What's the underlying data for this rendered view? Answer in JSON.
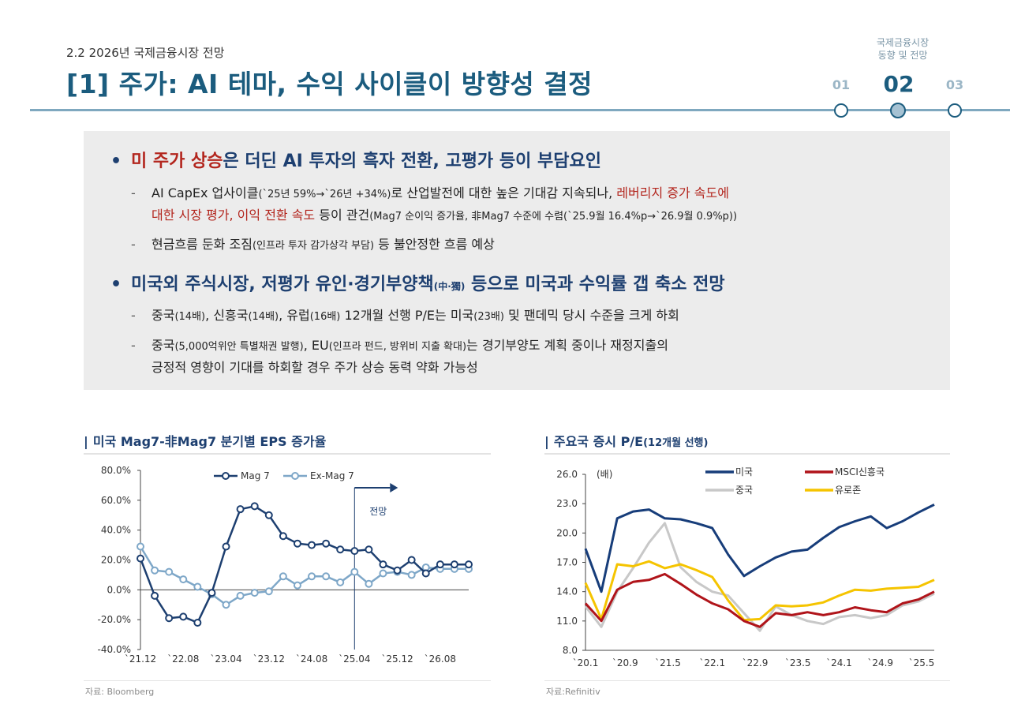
{
  "header": {
    "section": "2.2 2026년 국제금융시장 전망",
    "title": "[1] 주가: AI 테마, 수익 사이클이 방향성 결정",
    "nav_caption_1": "국제금융시장",
    "nav_caption_2": "동향 및 전망",
    "steps": [
      "01",
      "02",
      "03"
    ],
    "active_step": "02"
  },
  "summary": {
    "b1_red": "미 주가 상승",
    "b1_rest": "은 더딘 AI 투자의 흑자 전환, 고평가 등이 부담요인",
    "b1_s1_a": "AI CapEx 업사이클",
    "b1_s1_b": "(`25년 59%→`26년 +34%)",
    "b1_s1_c": "로 산업발전에 대한 높은 기대감 지속되나, ",
    "b1_s1_red": "레버리지 증가 속도에",
    "b1_s1_red2": "대한 시장 평가, 이익 전환 속도",
    "b1_s1_d": " 등이 관건",
    "b1_s1_e": "(Mag7 순이익 증가율, 非Mag7 수준에 수렴(`25.9월 16.4%p→`26.9월 0.9%p))",
    "b1_s2_a": "현금흐름 둔화 조짐",
    "b1_s2_b": "(인프라 투자 감가상각 부담)",
    "b1_s2_c": " 등 불안정한 흐름 예상",
    "b2_a": "미국외 주식시장, 저평가 유인·경기부양책",
    "b2_b": "(中·獨)",
    "b2_c": " 등으로 미국과 수익률 갭 축소 전망",
    "b2_s1": [
      "중국",
      "(14배)",
      ", 신흥국",
      "(14배)",
      ", 유럽",
      "(16배)",
      " 12개월 선행 P/E는 미국",
      "(23배)",
      " 및 팬데믹 당시 수준을 크게 하회"
    ],
    "b2_s2_a": "중국",
    "b2_s2_b": "(5,000억위안 특별채권 발행)",
    "b2_s2_c": ", EU",
    "b2_s2_d": "(인프라 펀드, 방위비 지출 확대)",
    "b2_s2_e": "는 경기부양도 계획 중이나 재정지출의",
    "b2_s2_f": "긍정적 영향이 기대를 하회할 경우 주가 상승 동력 약화 가능성"
  },
  "chart1": {
    "title": "미국 Mag7-非Mag7 분기별 EPS 증가율",
    "source": "자료: Bloomberg",
    "forecast_label": "전망",
    "colors": {
      "mag7": "#1d3f70",
      "ex": "#7ea7c8"
    }
  },
  "chart2": {
    "title": "주요국 증시 P/E",
    "title_small": "(12개월 선행)",
    "unit": "(배)",
    "source": "자료:Refinitiv",
    "colors": {
      "us": "#173d7a",
      "em": "#b0141a",
      "cn": "#c8c8c8",
      "eu": "#f5c400"
    }
  },
  "chart_data": [
    {
      "type": "line",
      "title": "미국 Mag7-非Mag7 분기별 EPS 증가율",
      "x": [
        "`21.12",
        "`22.03",
        "`22.06",
        "`22.08",
        "`22.12",
        "`23.02",
        "`23.04",
        "`23.06",
        "`23.08",
        "`23.12",
        "`24.02",
        "`24.05",
        "`24.08",
        "`24.11",
        "`25.02",
        "`25.04",
        "`25.07",
        "`25.10",
        "`25.12",
        "`26.03",
        "`26.06",
        "`26.08",
        "`26.10",
        "`26.12"
      ],
      "xticks": [
        "`21.12",
        "`22.08",
        "`23.04",
        "`23.12",
        "`24.08",
        "`25.04",
        "`25.12",
        "`26.08"
      ],
      "yticks": [
        "80.0%",
        "60.0%",
        "40.0%",
        "20.0%",
        "0.0%",
        "-20.0%",
        "-40.0%"
      ],
      "ylim": [
        -40,
        80
      ],
      "series": [
        {
          "name": "Mag 7",
          "values": [
            21,
            -4,
            -19,
            -18,
            -22,
            -2,
            29,
            54,
            56,
            50,
            36,
            31,
            30,
            31,
            27,
            26,
            27,
            17,
            13,
            20,
            11,
            17,
            17,
            17
          ]
        },
        {
          "name": "Ex-Mag 7",
          "values": [
            29,
            13,
            12,
            7,
            2,
            -3,
            -10,
            -4,
            -2,
            -1,
            9,
            3,
            9,
            9,
            5,
            12,
            4,
            11,
            12,
            10,
            15,
            14,
            14,
            14
          ]
        }
      ],
      "forecast_start": "`25.04",
      "legend": "top-center"
    },
    {
      "type": "line",
      "title": "주요국 증시 P/E(12개월 선행)",
      "xticks": [
        "`20.1",
        "`20.9",
        "`21.5",
        "`22.1",
        "`22.9",
        "`23.5",
        "`24.1",
        "`24.9",
        "`25.5"
      ],
      "yticks": [
        "26.0",
        "23.0",
        "20.0",
        "17.0",
        "14.0",
        "11.0",
        "8.0"
      ],
      "ylim": [
        8,
        26
      ],
      "x": [
        "`20.1",
        "`20.3",
        "`20.5",
        "`20.9",
        "`21.1",
        "`21.3",
        "`21.5",
        "`21.9",
        "`22.1",
        "`22.5",
        "`22.9",
        "`22.11",
        "`23.2",
        "`23.5",
        "`23.8",
        "`24.1",
        "`24.5",
        "`24.9",
        "`25.1",
        "`25.3",
        "`25.5",
        "`25.8",
        "`25.11"
      ],
      "series": [
        {
          "name": "미국",
          "values": [
            18.4,
            14.0,
            21.5,
            22.2,
            22.4,
            21.5,
            21.4,
            21.0,
            20.5,
            17.8,
            15.6,
            16.6,
            17.5,
            18.1,
            18.3,
            19.5,
            20.6,
            21.2,
            21.7,
            20.5,
            21.2,
            22.1,
            22.9
          ]
        },
        {
          "name": "MSCI신흥국",
          "values": [
            12.8,
            11.0,
            14.2,
            15.0,
            15.2,
            15.8,
            14.8,
            13.7,
            12.8,
            12.2,
            11.0,
            10.4,
            11.8,
            11.6,
            11.9,
            11.6,
            11.9,
            12.4,
            12.1,
            11.9,
            12.8,
            13.2,
            14.0
          ]
        },
        {
          "name": "중국",
          "values": [
            12.5,
            10.4,
            14.0,
            16.4,
            19.0,
            21.0,
            16.5,
            15.0,
            14.0,
            13.6,
            11.8,
            10.0,
            12.5,
            11.6,
            11.0,
            10.7,
            11.4,
            11.6,
            11.3,
            11.6,
            12.6,
            13.0,
            13.8
          ]
        },
        {
          "name": "유로존",
          "values": [
            14.9,
            11.2,
            16.8,
            16.6,
            17.1,
            16.4,
            16.8,
            16.2,
            15.5,
            13.1,
            11.1,
            11.2,
            12.6,
            12.5,
            12.6,
            12.9,
            13.6,
            14.2,
            14.1,
            14.3,
            14.4,
            14.5,
            15.2
          ]
        }
      ],
      "legend": "top-right"
    }
  ]
}
